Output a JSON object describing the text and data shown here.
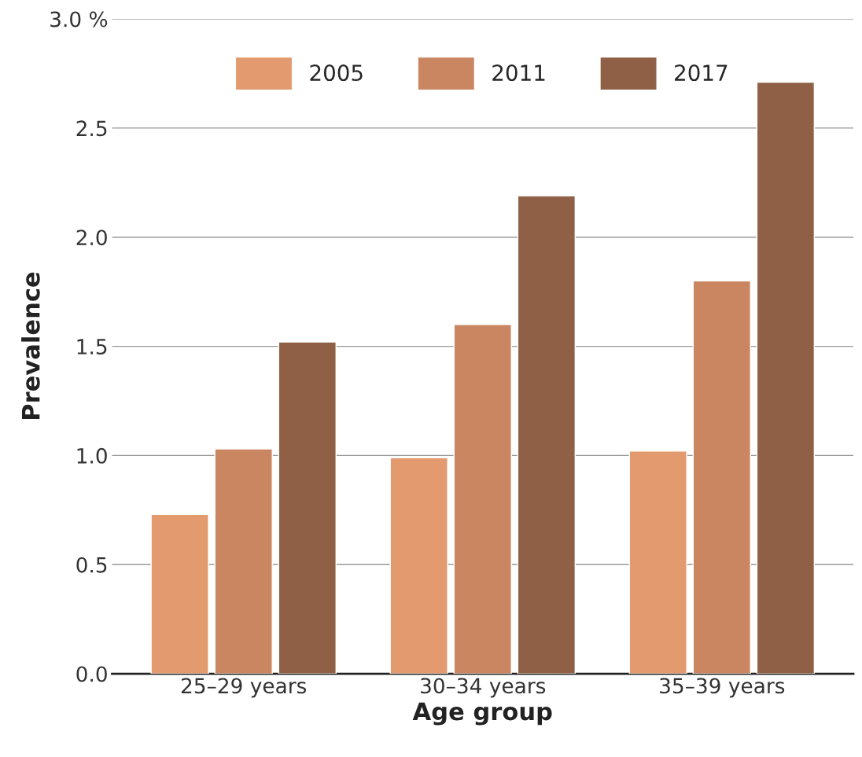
{
  "chart_data": {
    "type": "bar",
    "xlabel": "Age group",
    "ylabel": "Prevalence",
    "categories": [
      "25–29 years",
      "30–34 years",
      "35–39 years"
    ],
    "series": [
      {
        "name": "2005",
        "color": "#e49a6f",
        "values": [
          0.73,
          0.99,
          1.02
        ]
      },
      {
        "name": "2011",
        "color": "#c98660",
        "values": [
          1.03,
          1.6,
          1.8
        ]
      },
      {
        "name": "2017",
        "color": "#8f6046",
        "values": [
          1.52,
          2.19,
          2.71
        ]
      }
    ],
    "ylim": [
      0,
      3.0
    ],
    "yticks": [
      {
        "value": 0,
        "label": "0.0"
      },
      0.5,
      {
        "value": 1,
        "label": "1.0"
      },
      1.5,
      {
        "value": 2,
        "label": "2.0"
      },
      2.5,
      {
        "value": 3.0,
        "label": "3.0 %"
      }
    ],
    "grid": "y",
    "legend": "top"
  }
}
